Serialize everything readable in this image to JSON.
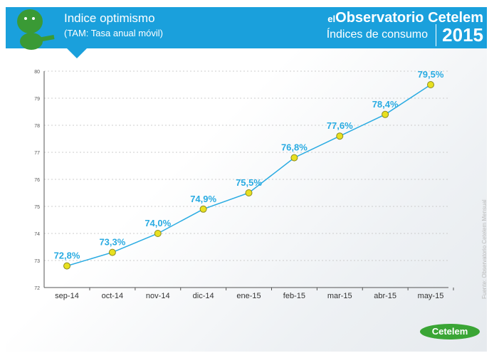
{
  "header": {
    "title": "Indice optimismo",
    "subtitle": "(TAM: Tasa anual móvil)",
    "brand_prefix": "el",
    "brand": "Observatorio Cetelem",
    "brand_sub": "Índices de consumo",
    "year": "2015"
  },
  "source": "Fuente: Observatorio Cetelem Mensual",
  "logo": "Cetelem",
  "colors": {
    "header": "#1aa0dc",
    "line": "#29abe2",
    "marker": "#e8e020",
    "label": "#29abe2"
  },
  "chart_data": {
    "type": "line",
    "title": "Indice optimismo",
    "xlabel": "",
    "ylabel": "",
    "categories": [
      "sep-14",
      "oct-14",
      "nov-14",
      "dic-14",
      "ene-15",
      "feb-15",
      "mar-15",
      "abr-15",
      "may-15"
    ],
    "values": [
      72.8,
      73.3,
      74.0,
      74.9,
      75.5,
      76.8,
      77.6,
      78.4,
      79.5
    ],
    "data_labels": [
      "72,8%",
      "73,3%",
      "74,0%",
      "74,9%",
      "75,5%",
      "76,8%",
      "77,6%",
      "78,4%",
      "79,5%"
    ],
    "yticks": [
      72,
      73,
      74,
      75,
      76,
      77,
      78,
      79,
      80
    ],
    "ylim": [
      72,
      80
    ],
    "grid": true
  }
}
